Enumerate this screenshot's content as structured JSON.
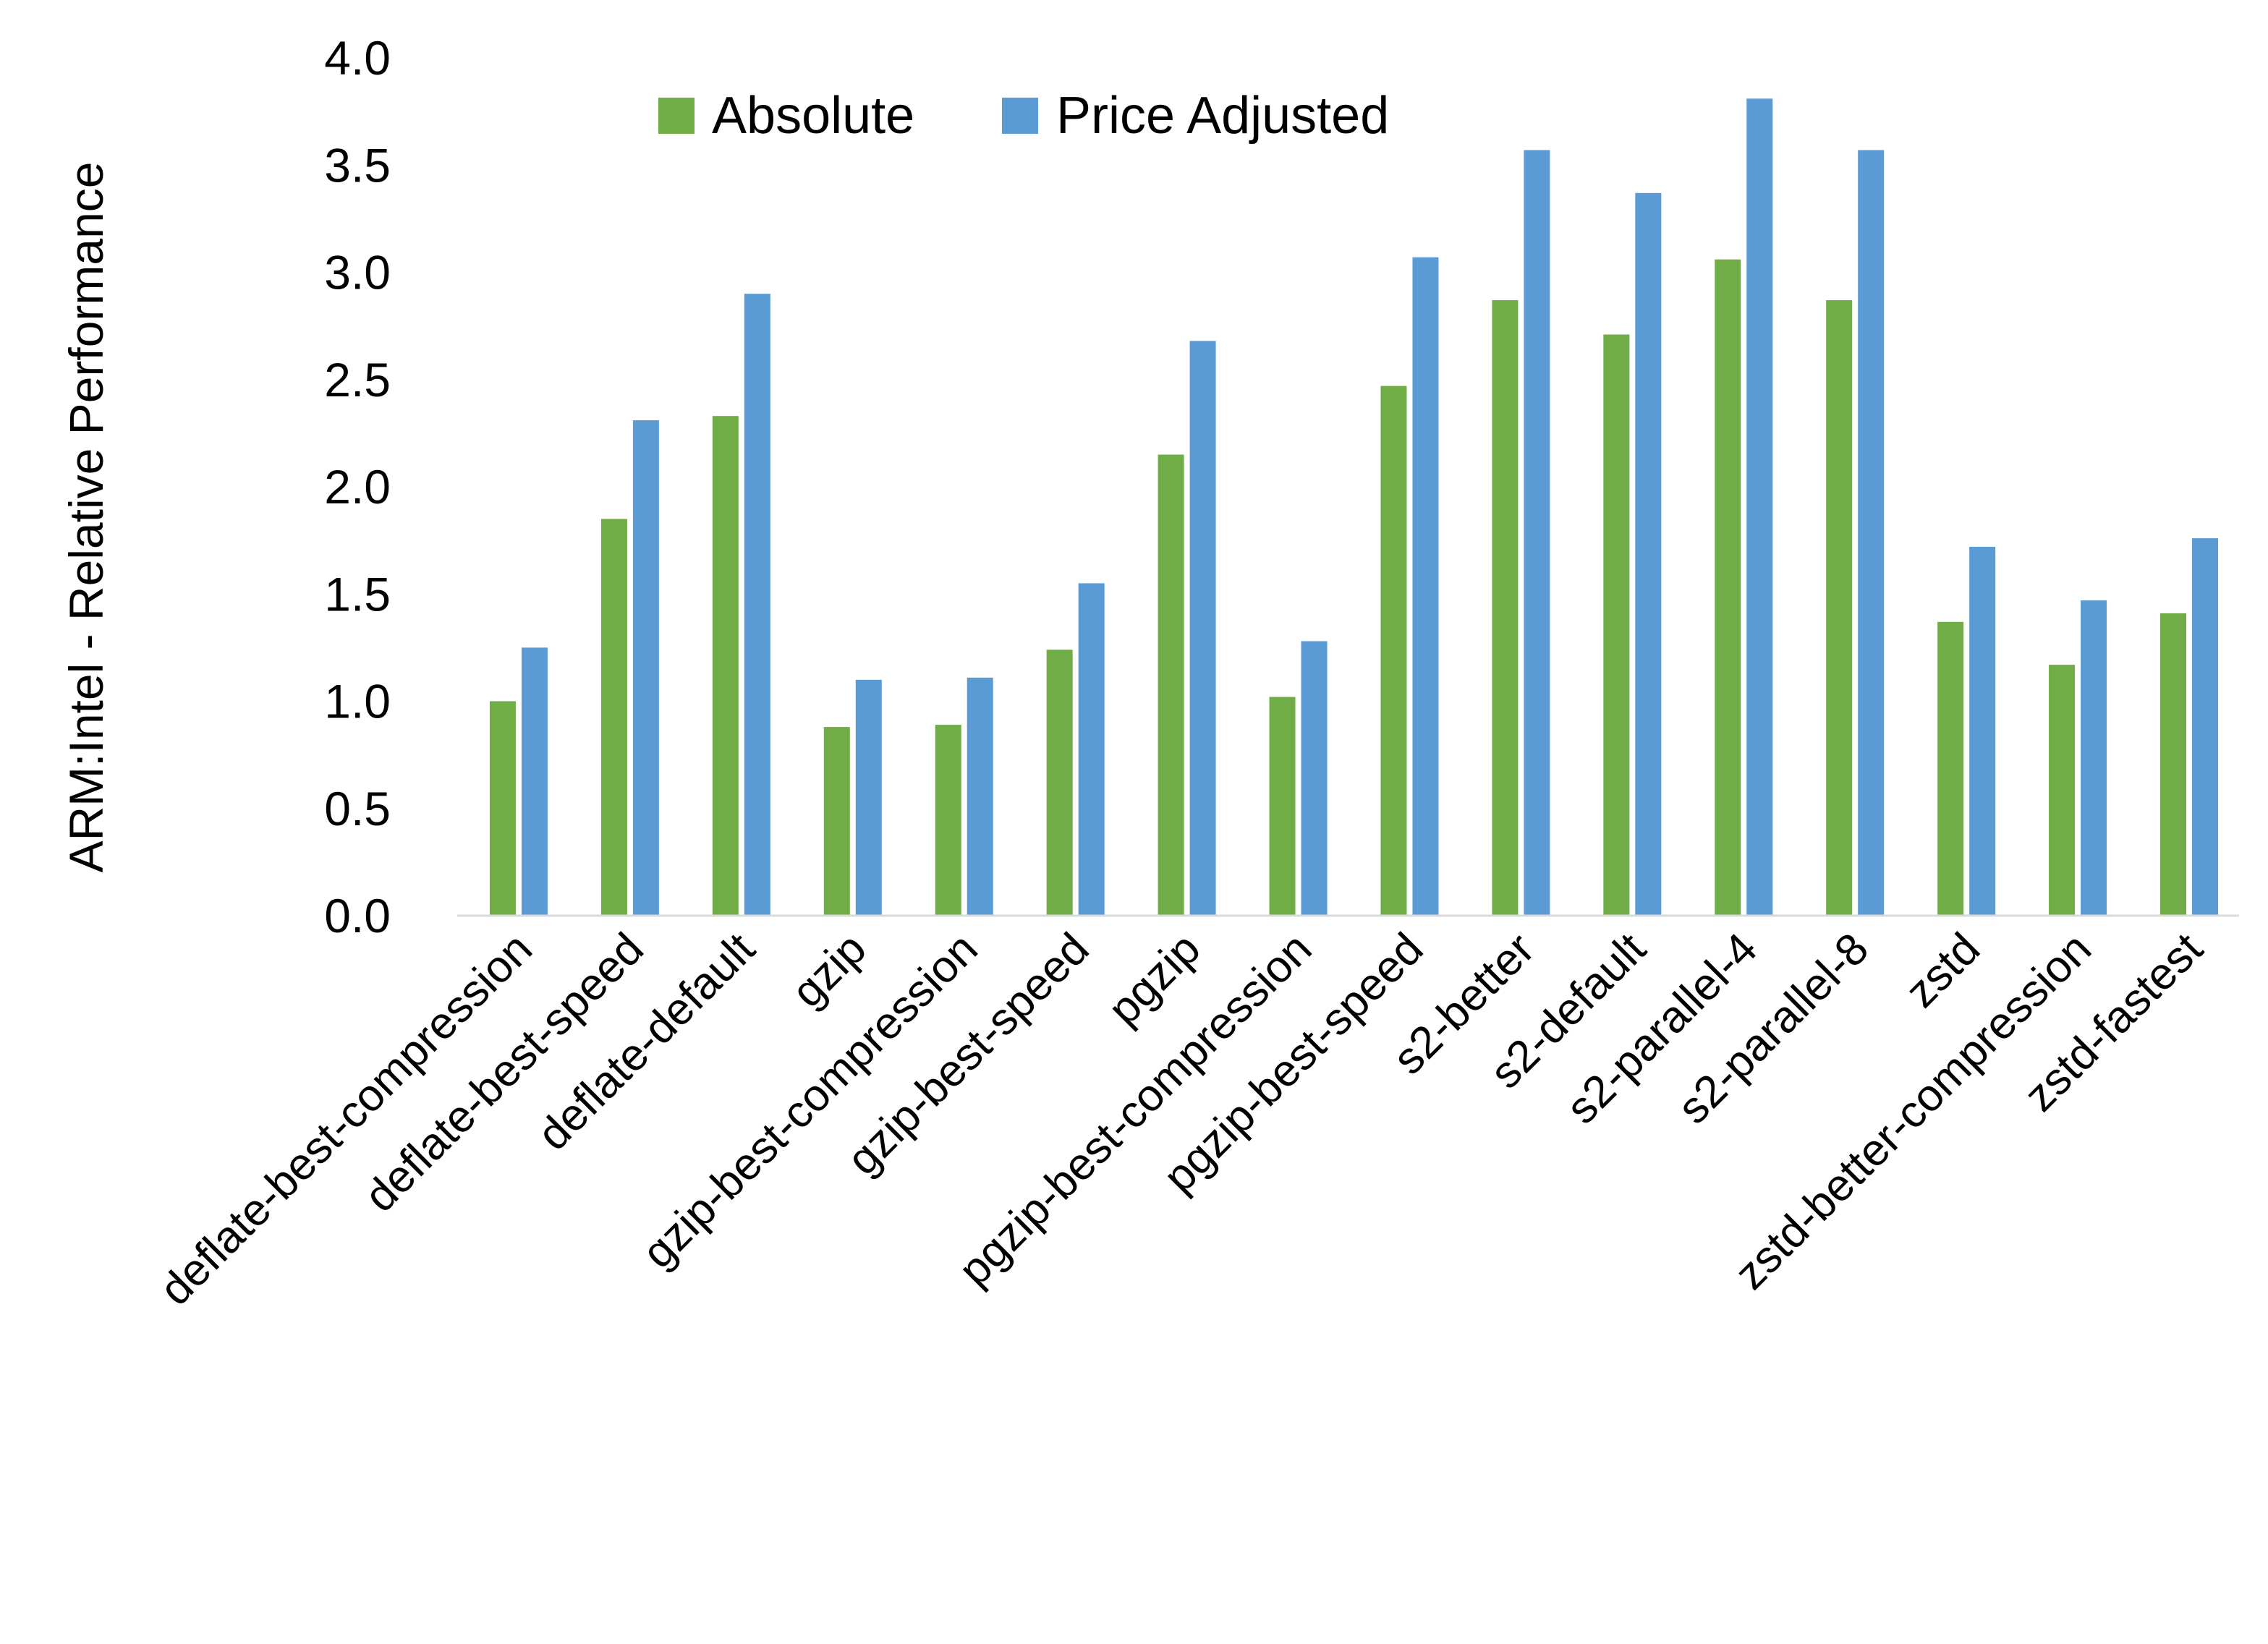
{
  "chart_data": {
    "type": "bar",
    "title": "",
    "xlabel": "",
    "ylabel": "ARM:Intel - Relative Performance",
    "ylim": [
      0,
      4
    ],
    "yticks": [
      "0.0",
      "0.5",
      "1.0",
      "1.5",
      "2.0",
      "2.5",
      "3.0",
      "3.5",
      "4.0"
    ],
    "grid": false,
    "legend_position": "top",
    "categories": [
      "deflate-best-compression",
      "deflate-best-speed",
      "deflate-default",
      "gzip",
      "gzip-best-compression",
      "gzip-best-speed",
      "pgzip",
      "pgzip-best-compression",
      "pgzip-best-speed",
      "s2-better",
      "s2-default",
      "s2-parallel-4",
      "s2-parallel-8",
      "zstd",
      "zstd-better-compression",
      "zstd-fastest"
    ],
    "series": [
      {
        "name": "Absolute",
        "color": "#70AD47",
        "values": [
          1.0,
          1.85,
          2.33,
          0.88,
          0.89,
          1.24,
          2.15,
          1.02,
          2.47,
          2.87,
          2.71,
          3.06,
          2.87,
          1.37,
          1.17,
          1.41
        ]
      },
      {
        "name": "Price Adjusted",
        "color": "#5B9BD5",
        "values": [
          1.25,
          2.31,
          2.9,
          1.1,
          1.11,
          1.55,
          2.68,
          1.28,
          3.07,
          3.57,
          3.37,
          3.81,
          3.57,
          1.72,
          1.47,
          1.76
        ]
      }
    ]
  }
}
